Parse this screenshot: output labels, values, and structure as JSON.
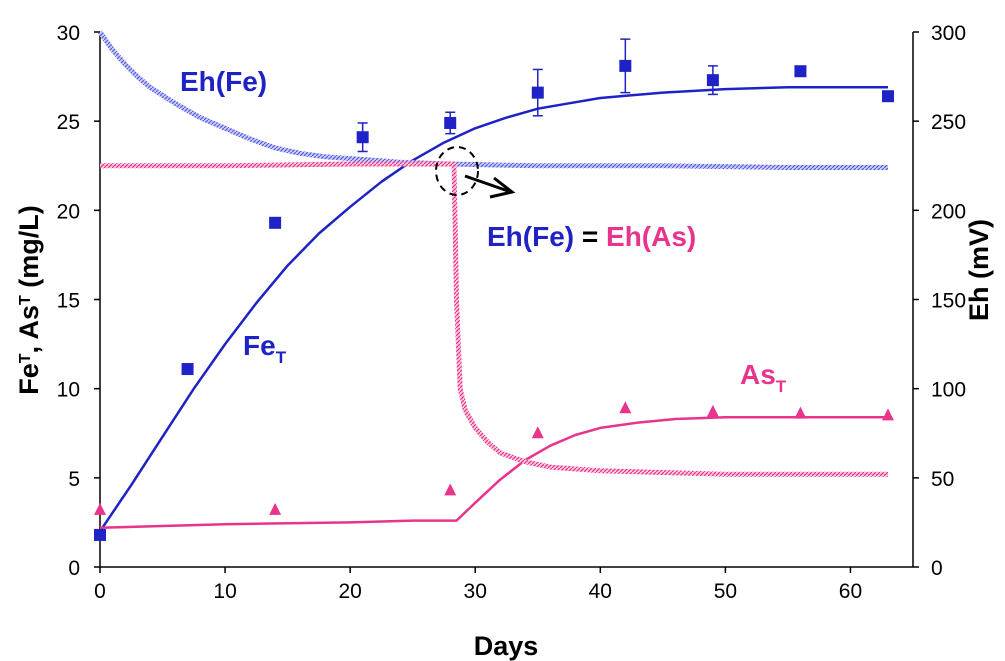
{
  "chart_data": {
    "type": "scatter",
    "xlabel": "Days",
    "ylabel_left": {
      "main": "Fe",
      "sub1": "T",
      "mid": ", As",
      "sub2": "T",
      "rest": " (mg/L)"
    },
    "ylabel_right": "Eh (mV)",
    "xlim": [
      0,
      65
    ],
    "ylim_left": [
      0,
      30
    ],
    "ylim_right": [
      0,
      300
    ],
    "x_ticks": [
      0,
      10,
      20,
      30,
      40,
      50,
      60
    ],
    "y_left_ticks": [
      0,
      5,
      10,
      15,
      20,
      25,
      30
    ],
    "y_right_ticks": [
      0,
      50,
      100,
      150,
      200,
      250,
      300
    ],
    "grid": false,
    "colors": {
      "fe": "#1f22c4",
      "as": "#e8348c",
      "eh_fe": "#8f93f0",
      "eh_as": "#f07fb2",
      "axis": "#000000"
    },
    "annotations": {
      "eh_fe": "Eh(Fe)",
      "fe_t_main": "Fe",
      "fe_t_sub": "T",
      "as_t_main": "As",
      "as_t_sub": "T",
      "eq_left": "Eh(Fe)",
      "eq_mid": " = ",
      "eq_right": "Eh(As)"
    },
    "series": [
      {
        "name": "FeT (measured)",
        "axis": "left",
        "marker": "square",
        "color": "#1f22c4",
        "points": [
          {
            "x": 0,
            "y": 1.8,
            "err": 0
          },
          {
            "x": 7,
            "y": 11.1,
            "err": 0
          },
          {
            "x": 14,
            "y": 19.3,
            "err": 0
          },
          {
            "x": 21,
            "y": 24.1,
            "err": 0.8
          },
          {
            "x": 28,
            "y": 24.9,
            "err": 0.6
          },
          {
            "x": 35,
            "y": 26.6,
            "err": 1.3
          },
          {
            "x": 42,
            "y": 28.1,
            "err": 1.5
          },
          {
            "x": 49,
            "y": 27.3,
            "err": 0.8
          },
          {
            "x": 56,
            "y": 27.8,
            "err": 0
          },
          {
            "x": 63,
            "y": 26.4,
            "err": 0
          }
        ]
      },
      {
        "name": "AsT (measured)",
        "axis": "left",
        "marker": "triangle",
        "color": "#e8348c",
        "points": [
          {
            "x": 0,
            "y": 3.2,
            "err": 0
          },
          {
            "x": 14,
            "y": 3.2,
            "err": 0
          },
          {
            "x": 28,
            "y": 4.3,
            "err": 0
          },
          {
            "x": 35,
            "y": 7.5,
            "err": 0
          },
          {
            "x": 42,
            "y": 8.9,
            "err": 0
          },
          {
            "x": 49,
            "y": 8.7,
            "err": 0
          },
          {
            "x": 56,
            "y": 8.6,
            "err": 0
          },
          {
            "x": 63,
            "y": 8.5,
            "err": 0
          }
        ]
      },
      {
        "name": "FeT (model)",
        "axis": "left",
        "style": "solid",
        "color": "#1f22c4",
        "line": [
          [
            0,
            2.0
          ],
          [
            2.5,
            4.6
          ],
          [
            5,
            7.3
          ],
          [
            7.5,
            10.0
          ],
          [
            10,
            12.5
          ],
          [
            12.5,
            14.8
          ],
          [
            15,
            16.9
          ],
          [
            17.5,
            18.7
          ],
          [
            20,
            20.2
          ],
          [
            22.5,
            21.6
          ],
          [
            25,
            22.8
          ],
          [
            27.5,
            23.8
          ],
          [
            30,
            24.6
          ],
          [
            32.5,
            25.2
          ],
          [
            35,
            25.7
          ],
          [
            37.5,
            26.0
          ],
          [
            40,
            26.3
          ],
          [
            45,
            26.6
          ],
          [
            50,
            26.8
          ],
          [
            55,
            26.9
          ],
          [
            60,
            26.9
          ],
          [
            63,
            26.9
          ]
        ]
      },
      {
        "name": "AsT (model)",
        "axis": "left",
        "style": "solid",
        "color": "#e8348c",
        "line": [
          [
            0,
            2.2
          ],
          [
            5,
            2.3
          ],
          [
            10,
            2.4
          ],
          [
            15,
            2.45
          ],
          [
            20,
            2.5
          ],
          [
            25,
            2.6
          ],
          [
            28.5,
            2.6
          ],
          [
            30,
            3.6
          ],
          [
            32,
            4.9
          ],
          [
            34,
            6.0
          ],
          [
            36,
            6.8
          ],
          [
            38,
            7.4
          ],
          [
            40,
            7.8
          ],
          [
            43,
            8.1
          ],
          [
            46,
            8.3
          ],
          [
            50,
            8.4
          ],
          [
            55,
            8.4
          ],
          [
            60,
            8.4
          ],
          [
            63,
            8.4
          ]
        ]
      },
      {
        "name": "Eh(Fe) (model)",
        "axis": "right",
        "style": "hatched",
        "color": "#8f93f0",
        "line": [
          [
            0,
            300
          ],
          [
            1,
            290
          ],
          [
            2,
            282
          ],
          [
            3,
            275
          ],
          [
            4,
            269
          ],
          [
            6,
            260
          ],
          [
            8,
            252
          ],
          [
            10,
            246
          ],
          [
            12,
            240
          ],
          [
            14,
            235
          ],
          [
            16,
            232
          ],
          [
            18,
            230
          ],
          [
            20,
            229
          ],
          [
            24,
            227
          ],
          [
            28,
            226
          ],
          [
            35,
            225
          ],
          [
            45,
            225
          ],
          [
            55,
            224
          ],
          [
            63,
            224
          ]
        ]
      },
      {
        "name": "Eh(As) (model)",
        "axis": "right",
        "style": "hatched",
        "color": "#f07fb2",
        "line": [
          [
            0,
            225
          ],
          [
            10,
            225
          ],
          [
            20,
            226
          ],
          [
            28.3,
            226
          ],
          [
            28.5,
            150
          ],
          [
            28.8,
            100
          ],
          [
            29.2,
            88
          ],
          [
            30,
            78
          ],
          [
            31,
            70
          ],
          [
            32,
            64
          ],
          [
            34,
            59
          ],
          [
            36,
            56
          ],
          [
            40,
            54
          ],
          [
            45,
            53
          ],
          [
            50,
            52
          ],
          [
            55,
            52
          ],
          [
            63,
            52
          ]
        ]
      }
    ]
  }
}
